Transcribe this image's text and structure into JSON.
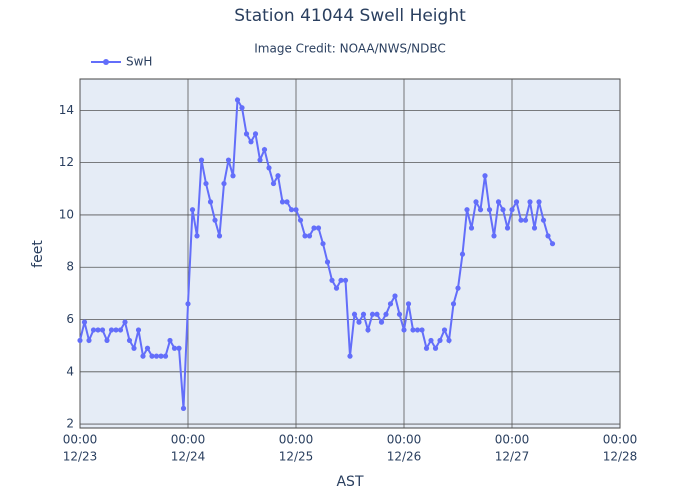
{
  "chart_data": {
    "type": "line",
    "title": "Station 41044 Swell Height",
    "subtitle": "Image Credit: NOAA/NWS/NDBC",
    "x_label": "AST",
    "y_label": "feet",
    "x": [
      "12/23 00:00",
      "12/23 01:00",
      "12/23 02:00",
      "12/23 03:00",
      "12/23 04:00",
      "12/23 05:00",
      "12/23 06:00",
      "12/23 07:00",
      "12/23 08:00",
      "12/23 09:00",
      "12/23 10:00",
      "12/23 11:00",
      "12/23 12:00",
      "12/23 13:00",
      "12/23 14:00",
      "12/23 15:00",
      "12/23 16:00",
      "12/23 17:00",
      "12/23 18:00",
      "12/23 19:00",
      "12/23 20:00",
      "12/23 21:00",
      "12/23 22:00",
      "12/23 23:00",
      "12/24 00:00",
      "12/24 01:00",
      "12/24 02:00",
      "12/24 03:00",
      "12/24 04:00",
      "12/24 05:00",
      "12/24 06:00",
      "12/24 07:00",
      "12/24 08:00",
      "12/24 09:00",
      "12/24 10:00",
      "12/24 11:00",
      "12/24 12:00",
      "12/24 13:00",
      "12/24 14:00",
      "12/24 15:00",
      "12/24 16:00",
      "12/24 17:00",
      "12/24 18:00",
      "12/24 19:00",
      "12/24 20:00",
      "12/24 21:00",
      "12/24 22:00",
      "12/24 23:00",
      "12/25 00:00",
      "12/25 01:00",
      "12/25 02:00",
      "12/25 03:00",
      "12/25 04:00",
      "12/25 05:00",
      "12/25 06:00",
      "12/25 07:00",
      "12/25 08:00",
      "12/25 09:00",
      "12/25 10:00",
      "12/25 11:00",
      "12/25 12:00",
      "12/25 13:00",
      "12/25 14:00",
      "12/25 15:00",
      "12/25 16:00",
      "12/25 17:00",
      "12/25 18:00",
      "12/25 19:00",
      "12/25 20:00",
      "12/25 21:00",
      "12/25 22:00",
      "12/25 23:00",
      "12/26 00:00",
      "12/26 01:00",
      "12/26 02:00",
      "12/26 03:00",
      "12/26 04:00",
      "12/26 05:00",
      "12/26 06:00",
      "12/26 07:00",
      "12/26 08:00",
      "12/26 09:00",
      "12/26 10:00",
      "12/26 11:00",
      "12/26 12:00",
      "12/26 13:00",
      "12/26 14:00",
      "12/26 15:00",
      "12/26 16:00",
      "12/26 17:00",
      "12/26 18:00",
      "12/26 19:00",
      "12/26 20:00",
      "12/26 21:00",
      "12/26 22:00",
      "12/26 23:00",
      "12/27 00:00",
      "12/27 01:00",
      "12/27 02:00",
      "12/27 03:00",
      "12/27 04:00",
      "12/27 05:00",
      "12/27 06:00",
      "12/27 07:00",
      "12/27 08:00",
      "12/27 09:00"
    ],
    "series": [
      {
        "name": "SwH",
        "color": "#636efa",
        "values": [
          5.2,
          5.9,
          5.2,
          5.6,
          5.6,
          5.6,
          5.2,
          5.6,
          5.6,
          5.6,
          5.9,
          5.2,
          4.9,
          5.6,
          4.6,
          4.9,
          4.6,
          4.6,
          4.6,
          4.6,
          5.2,
          4.9,
          4.9,
          2.6,
          6.6,
          10.2,
          9.2,
          12.1,
          11.2,
          10.5,
          9.8,
          9.2,
          11.2,
          12.1,
          11.5,
          14.4,
          14.1,
          13.1,
          12.8,
          13.1,
          12.1,
          12.5,
          11.8,
          11.2,
          11.5,
          10.5,
          10.5,
          10.2,
          10.2,
          9.8,
          9.2,
          9.2,
          9.5,
          9.5,
          8.9,
          8.2,
          7.5,
          7.2,
          7.5,
          7.5,
          4.6,
          6.2,
          5.9,
          6.2,
          5.6,
          6.2,
          6.2,
          5.9,
          6.2,
          6.6,
          6.9,
          6.2,
          5.6,
          6.6,
          5.6,
          5.6,
          5.6,
          4.9,
          5.2,
          4.9,
          5.2,
          5.6,
          5.2,
          6.6,
          7.2,
          8.5,
          10.2,
          9.5,
          10.5,
          10.2,
          11.5,
          10.2,
          9.2,
          10.5,
          10.2,
          9.5,
          10.2,
          10.5,
          9.8,
          9.8,
          10.5,
          9.5,
          10.5,
          9.8,
          9.2,
          8.9
        ]
      }
    ],
    "xlim": [
      "12/23 00:00",
      "12/28 00:00"
    ],
    "xticks": [
      {
        "value": "12/23 00:00",
        "label": [
          "00:00",
          "12/23"
        ]
      },
      {
        "value": "12/24 00:00",
        "label": [
          "00:00",
          "12/24"
        ]
      },
      {
        "value": "12/25 00:00",
        "label": [
          "00:00",
          "12/25"
        ]
      },
      {
        "value": "12/26 00:00",
        "label": [
          "00:00",
          "12/26"
        ]
      },
      {
        "value": "12/27 00:00",
        "label": [
          "00:00",
          "12/27"
        ]
      },
      {
        "value": "12/28 00:00",
        "label": [
          "00:00",
          "12/28"
        ]
      }
    ],
    "ylim": [
      1.85,
      15.2
    ],
    "yticks": [
      2,
      4,
      6,
      8,
      10,
      12,
      14
    ],
    "grid": true
  }
}
